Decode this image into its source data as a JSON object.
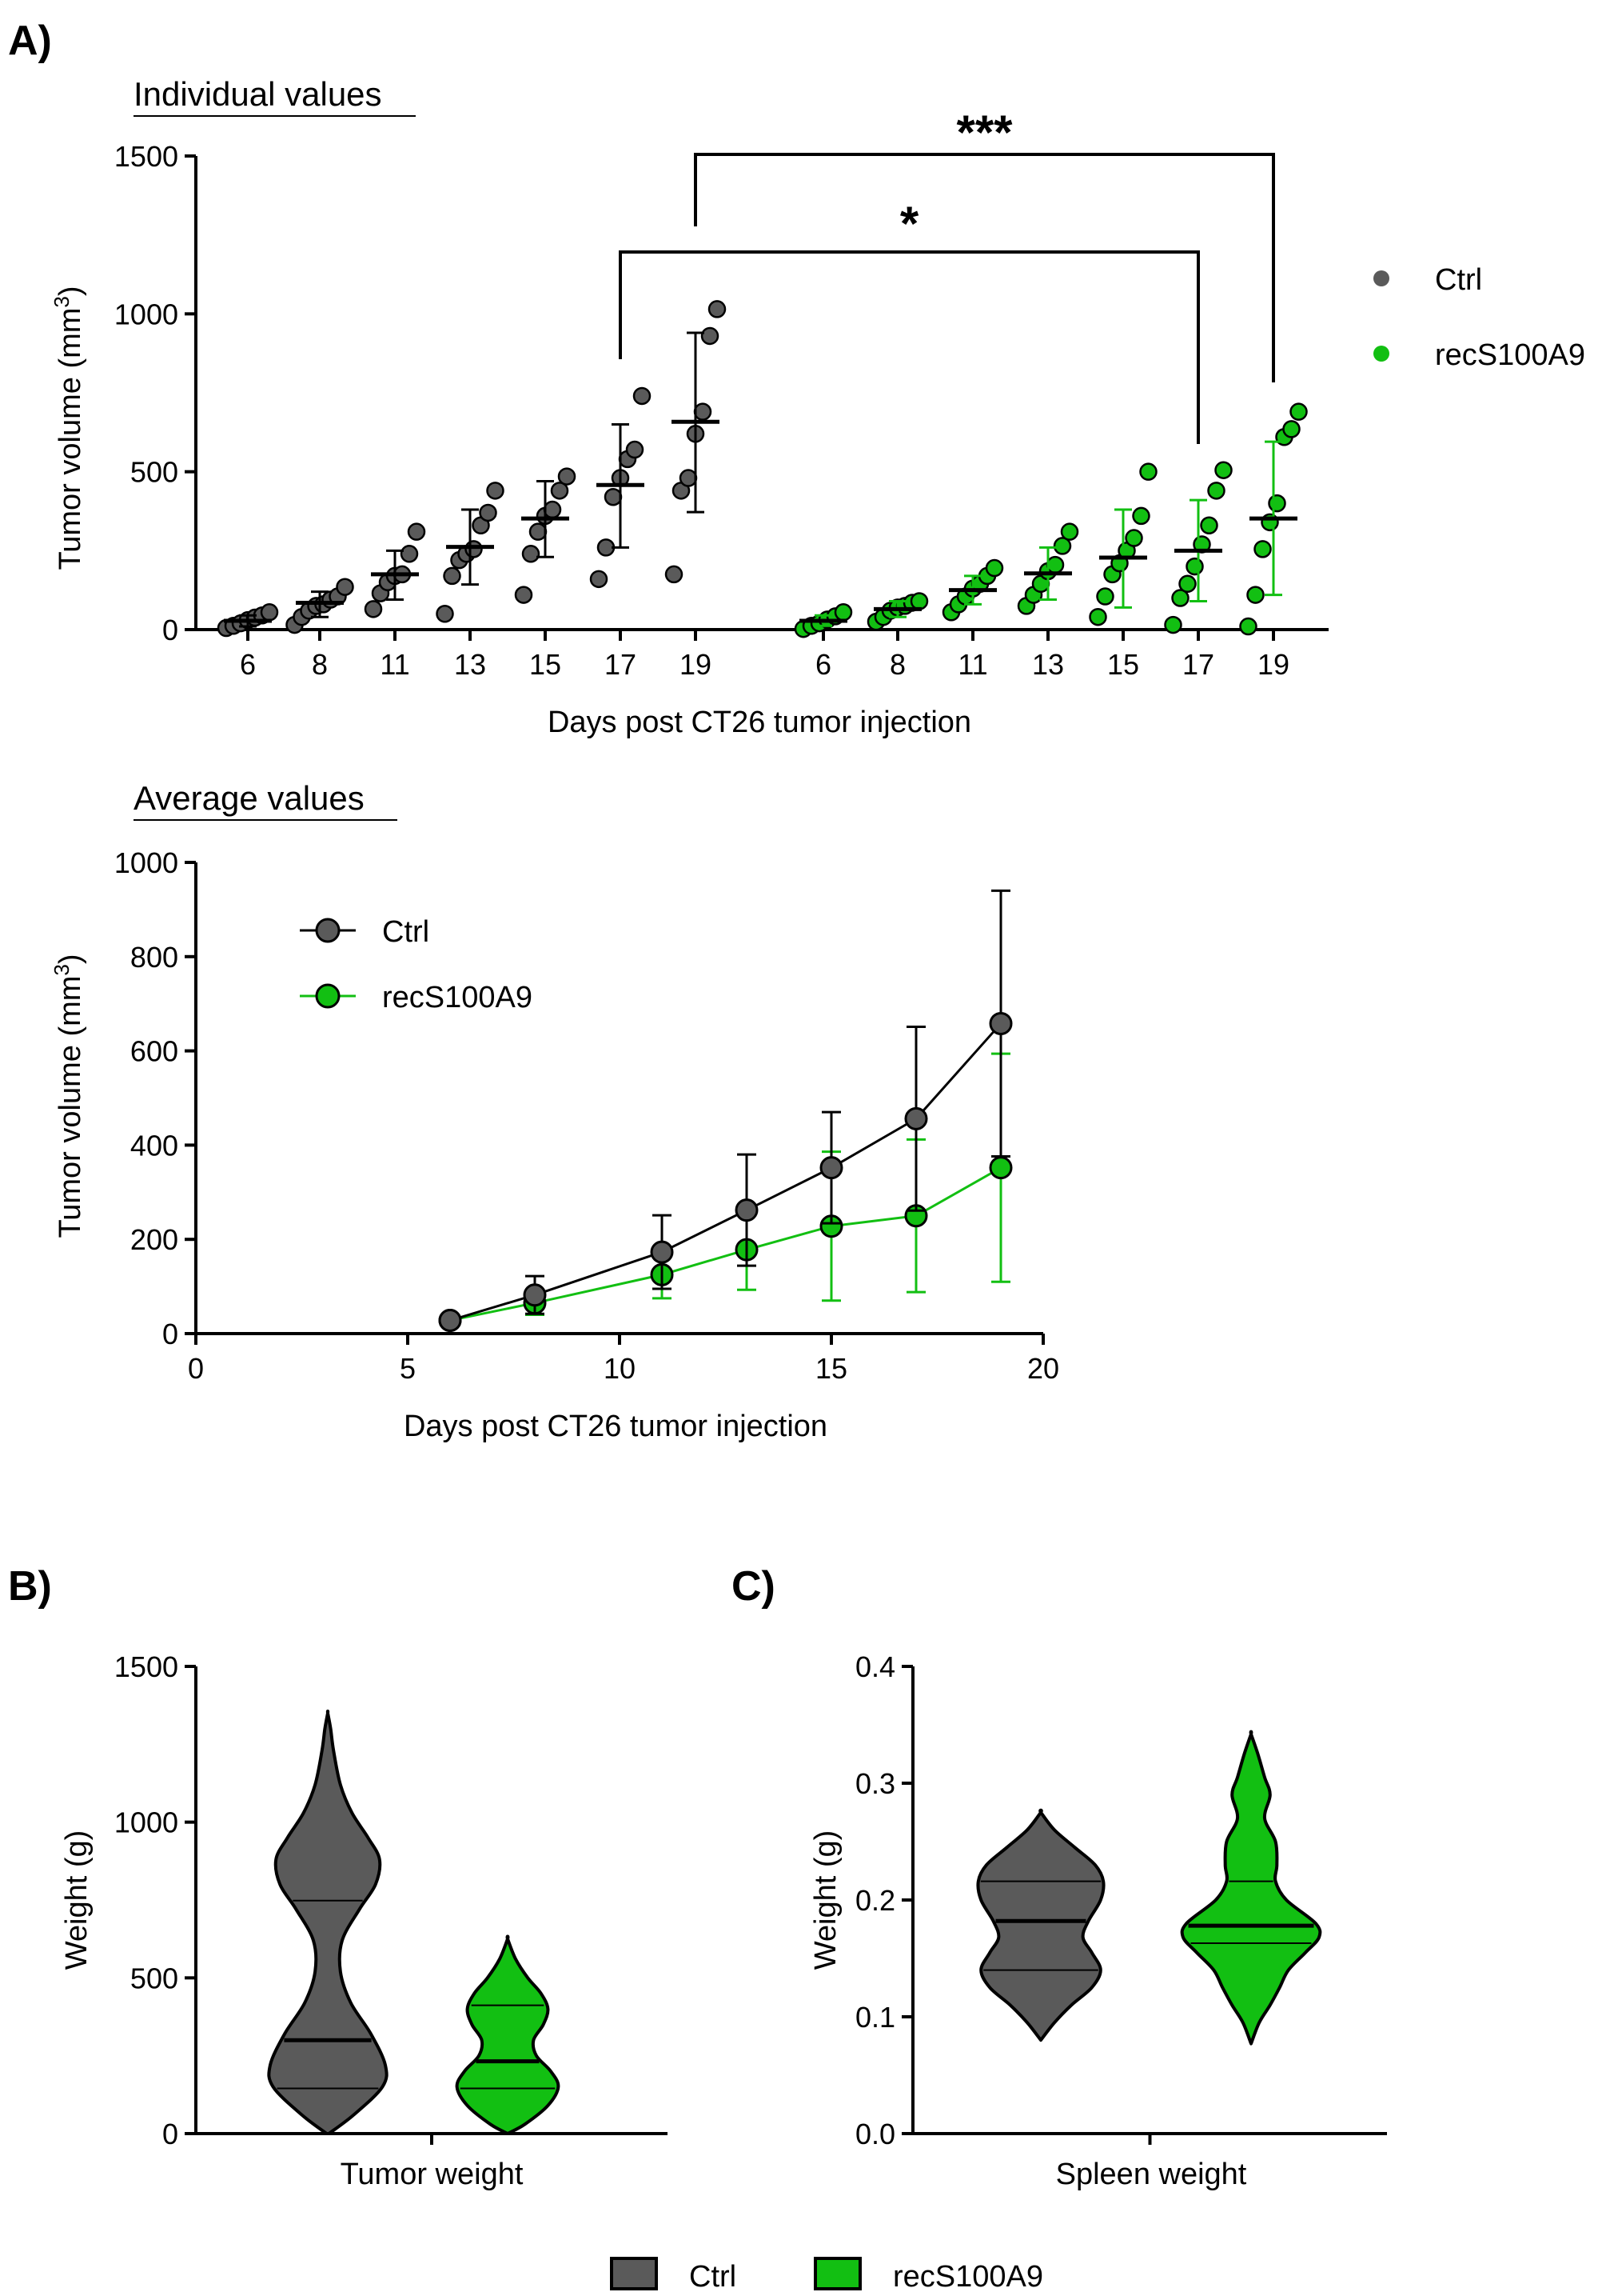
{
  "colors": {
    "ctrl_fill": "#5a5a5a",
    "ctrl_line": "#000000",
    "rec_fill": "#12bf12",
    "rec_line": "#12bf12",
    "outline": "#000000"
  },
  "panel_labels": {
    "a": "A)",
    "b": "B)",
    "c": "C)"
  },
  "chart_data": [
    {
      "id": "scatter",
      "type": "scatter",
      "subtitle": "Individual values",
      "ylabel": "Tumor volume (mm3)",
      "ylabel_main": "Tumor volume (mm",
      "ylabel_sup": "3",
      "ylabel_close": ")",
      "xlabel": "Days post  CT26 tumor injection",
      "ylim": [
        0,
        1500
      ],
      "yticks": [
        "0",
        "500",
        "1000",
        "1500"
      ],
      "ytick_values": [
        0,
        500,
        1000,
        1500
      ],
      "categories": [
        "6",
        "8",
        "11",
        "13",
        "15",
        "17",
        "19"
      ],
      "legend": [
        "Ctrl",
        "recS100A9"
      ],
      "series": [
        {
          "name": "Ctrl",
          "means": [
            28,
            85,
            175,
            262,
            352,
            458,
            658
          ],
          "sd_low": [
            10,
            40,
            95,
            143,
            230,
            260,
            372
          ],
          "sd_high": [
            45,
            120,
            250,
            380,
            470,
            650,
            940
          ],
          "points": [
            [
              5,
              12,
              20,
              30,
              38,
              45,
              55
            ],
            [
              15,
              40,
              60,
              75,
              80,
              95,
              105,
              135
            ],
            [
              65,
              115,
              150,
              170,
              175,
              240,
              310
            ],
            [
              50,
              170,
              220,
              240,
              255,
              330,
              370,
              440
            ],
            [
              110,
              240,
              310,
              360,
              380,
              440,
              485
            ],
            [
              160,
              260,
              420,
              480,
              540,
              570,
              740
            ],
            [
              175,
              440,
              480,
              620,
              690,
              930,
              1015
            ]
          ]
        },
        {
          "name": "recS100A9",
          "means": [
            28,
            65,
            125,
            178,
            228,
            250,
            352
          ],
          "sd_low": [
            12,
            40,
            80,
            95,
            70,
            90,
            110
          ],
          "sd_high": [
            45,
            90,
            170,
            260,
            380,
            410,
            595
          ],
          "points": [
            [
              2,
              12,
              20,
              32,
              42,
              55
            ],
            [
              25,
              40,
              60,
              70,
              75,
              85,
              90
            ],
            [
              55,
              80,
              105,
              130,
              145,
              170,
              195
            ],
            [
              75,
              110,
              145,
              185,
              205,
              265,
              310
            ],
            [
              40,
              105,
              175,
              210,
              250,
              290,
              360,
              500
            ],
            [
              15,
              100,
              145,
              200,
              270,
              330,
              440,
              505
            ],
            [
              10,
              110,
              255,
              340,
              400,
              610,
              635,
              690
            ]
          ]
        }
      ],
      "annotations": [
        {
          "text": "*",
          "from": "Ctrl 17",
          "to": "recS100A9 17"
        },
        {
          "text": "***",
          "from": "Ctrl 19",
          "to": "recS100A9 19"
        }
      ]
    },
    {
      "id": "line",
      "type": "line",
      "subtitle": "Average values",
      "ylabel": "Tumor volume (mm3)",
      "ylabel_main": "Tumor volume (mm",
      "ylabel_sup": "3",
      "ylabel_close": ")",
      "xlabel": "Days post  CT26 tumor injection",
      "xlim": [
        0,
        20
      ],
      "ylim": [
        0,
        1000
      ],
      "xticks": [
        "0",
        "5",
        "10",
        "15",
        "20"
      ],
      "xtick_values": [
        0,
        5,
        10,
        15,
        20
      ],
      "yticks": [
        "0",
        "200",
        "400",
        "600",
        "800",
        "1000"
      ],
      "ytick_values": [
        0,
        200,
        400,
        600,
        800,
        1000
      ],
      "x": [
        6,
        8,
        11,
        13,
        15,
        17,
        19
      ],
      "legend": [
        "Ctrl",
        "recS100A9"
      ],
      "series": [
        {
          "name": "Ctrl",
          "values": [
            28,
            82,
            173,
            262,
            352,
            456,
            658
          ],
          "err": [
            0,
            40,
            78,
            118,
            118,
            195,
            282
          ]
        },
        {
          "name": "recS100A9",
          "values": [
            28,
            65,
            125,
            178,
            228,
            250,
            352
          ],
          "err": [
            0,
            25,
            50,
            85,
            158,
            162,
            242
          ]
        }
      ]
    },
    {
      "id": "tumor-violin",
      "type": "violin",
      "ylabel": "Weight (g)",
      "xlabel": "Tumor weight",
      "ylim": [
        0,
        1500
      ],
      "yticks": [
        "0",
        "500",
        "1000",
        "1500"
      ],
      "ytick_values": [
        0,
        500,
        1000,
        1500
      ],
      "series": [
        {
          "name": "Ctrl",
          "median": 300,
          "q1": 145,
          "q3": 748,
          "profile": [
            [
              0,
              0.02
            ],
            [
              60,
              0.45
            ],
            [
              150,
              0.95
            ],
            [
              220,
              1.0
            ],
            [
              320,
              0.75
            ],
            [
              420,
              0.4
            ],
            [
              520,
              0.22
            ],
            [
              620,
              0.25
            ],
            [
              720,
              0.55
            ],
            [
              800,
              0.83
            ],
            [
              880,
              0.9
            ],
            [
              950,
              0.7
            ],
            [
              1030,
              0.42
            ],
            [
              1120,
              0.22
            ],
            [
              1230,
              0.1
            ],
            [
              1300,
              0.05
            ],
            [
              1350,
              0.0
            ]
          ]
        },
        {
          "name": "recS100A9",
          "median": 232,
          "q1": 145,
          "q3": 412,
          "profile": [
            [
              0,
              0.0
            ],
            [
              30,
              0.3
            ],
            [
              90,
              0.7
            ],
            [
              150,
              0.88
            ],
            [
              200,
              0.75
            ],
            [
              250,
              0.5
            ],
            [
              300,
              0.45
            ],
            [
              350,
              0.62
            ],
            [
              400,
              0.7
            ],
            [
              450,
              0.58
            ],
            [
              500,
              0.35
            ],
            [
              560,
              0.14
            ],
            [
              625,
              0.0
            ]
          ]
        }
      ]
    },
    {
      "id": "spleen-violin",
      "type": "violin",
      "ylabel": "Weight (g)",
      "xlabel": "Spleen weight",
      "ylim": [
        0.0,
        0.4
      ],
      "yticks": [
        "0.0",
        "0.1",
        "0.2",
        "0.3",
        "0.4"
      ],
      "ytick_values": [
        0.0,
        0.1,
        0.2,
        0.3,
        0.4
      ],
      "series": [
        {
          "name": "Ctrl",
          "median": 0.182,
          "q1": 0.14,
          "q3": 0.216,
          "profile": [
            [
              0.08,
              0.0
            ],
            [
              0.095,
              0.2
            ],
            [
              0.11,
              0.45
            ],
            [
              0.125,
              0.75
            ],
            [
              0.14,
              0.88
            ],
            [
              0.155,
              0.75
            ],
            [
              0.168,
              0.62
            ],
            [
              0.182,
              0.7
            ],
            [
              0.2,
              0.88
            ],
            [
              0.216,
              0.92
            ],
            [
              0.23,
              0.8
            ],
            [
              0.245,
              0.5
            ],
            [
              0.26,
              0.2
            ],
            [
              0.275,
              0.0
            ]
          ]
        },
        {
          "name": "recS100A9",
          "median": 0.178,
          "q1": 0.163,
          "q3": 0.216,
          "profile": [
            [
              0.077,
              0.0
            ],
            [
              0.095,
              0.12
            ],
            [
              0.11,
              0.28
            ],
            [
              0.125,
              0.42
            ],
            [
              0.14,
              0.55
            ],
            [
              0.155,
              0.8
            ],
            [
              0.168,
              1.0
            ],
            [
              0.18,
              0.95
            ],
            [
              0.2,
              0.52
            ],
            [
              0.216,
              0.36
            ],
            [
              0.23,
              0.38
            ],
            [
              0.25,
              0.36
            ],
            [
              0.27,
              0.2
            ],
            [
              0.29,
              0.28
            ],
            [
              0.305,
              0.2
            ],
            [
              0.325,
              0.1
            ],
            [
              0.342,
              0.0
            ]
          ]
        }
      ]
    }
  ],
  "bottom_legend": [
    "Ctrl",
    "recS100A9"
  ]
}
